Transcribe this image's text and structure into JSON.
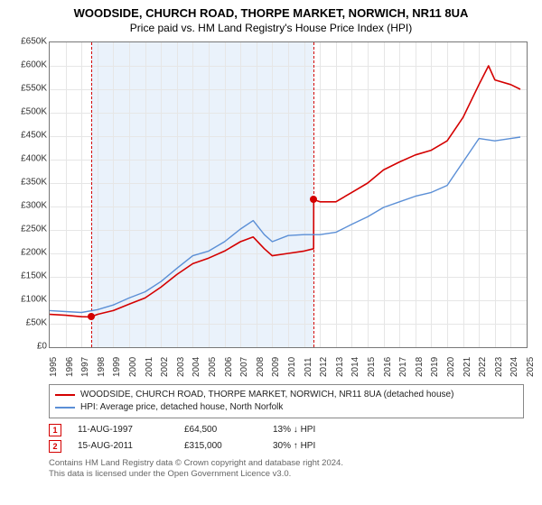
{
  "header": {
    "title": "WOODSIDE, CHURCH ROAD, THORPE MARKET, NORWICH, NR11 8UA",
    "subtitle": "Price paid vs. HM Land Registry's House Price Index (HPI)"
  },
  "chart": {
    "type": "line",
    "x": {
      "min": 1995,
      "max": 2025,
      "tick_step": 1
    },
    "y": {
      "min": 0,
      "max": 650000,
      "tick_step": 50000,
      "prefix": "£",
      "ksuffix": "K"
    },
    "grid_color": "#e6e6e6",
    "border_color": "#777777",
    "background_color": "#ffffff",
    "band": {
      "start": 1997.6,
      "end": 2011.6,
      "color": "#eaf2fb"
    },
    "series": [
      {
        "id": "prop",
        "label": "WOODSIDE, CHURCH ROAD, THORPE MARKET, NORWICH, NR11 8UA (detached house)",
        "color": "#d40000",
        "line_width": 1.6,
        "data": [
          [
            1995,
            70000
          ],
          [
            1996,
            68000
          ],
          [
            1997,
            65000
          ],
          [
            1997.6,
            64500
          ],
          [
            1998,
            70000
          ],
          [
            1999,
            78000
          ],
          [
            2000,
            92000
          ],
          [
            2001,
            105000
          ],
          [
            2002,
            128000
          ],
          [
            2003,
            155000
          ],
          [
            2004,
            178000
          ],
          [
            2005,
            190000
          ],
          [
            2006,
            205000
          ],
          [
            2007,
            225000
          ],
          [
            2007.8,
            235000
          ],
          [
            2008.5,
            210000
          ],
          [
            2009,
            195000
          ],
          [
            2010,
            200000
          ],
          [
            2011,
            205000
          ],
          [
            2011.6,
            210000
          ],
          [
            2011.61,
            315000
          ],
          [
            2012,
            310000
          ],
          [
            2013,
            310000
          ],
          [
            2014,
            330000
          ],
          [
            2015,
            350000
          ],
          [
            2016,
            378000
          ],
          [
            2017,
            395000
          ],
          [
            2018,
            410000
          ],
          [
            2019,
            420000
          ],
          [
            2020,
            440000
          ],
          [
            2021,
            490000
          ],
          [
            2022,
            560000
          ],
          [
            2022.6,
            600000
          ],
          [
            2023,
            570000
          ],
          [
            2024,
            560000
          ],
          [
            2024.6,
            550000
          ]
        ]
      },
      {
        "id": "hpi",
        "label": "HPI: Average price, detached house, North Norfolk",
        "color": "#5b8fd6",
        "line_width": 1.4,
        "data": [
          [
            1995,
            78000
          ],
          [
            1996,
            76000
          ],
          [
            1997,
            74000
          ],
          [
            1998,
            80000
          ],
          [
            1999,
            90000
          ],
          [
            2000,
            105000
          ],
          [
            2001,
            118000
          ],
          [
            2002,
            140000
          ],
          [
            2003,
            168000
          ],
          [
            2004,
            195000
          ],
          [
            2005,
            205000
          ],
          [
            2006,
            225000
          ],
          [
            2007,
            252000
          ],
          [
            2007.8,
            270000
          ],
          [
            2008.5,
            240000
          ],
          [
            2009,
            225000
          ],
          [
            2010,
            238000
          ],
          [
            2011,
            240000
          ],
          [
            2012,
            240000
          ],
          [
            2013,
            245000
          ],
          [
            2014,
            262000
          ],
          [
            2015,
            278000
          ],
          [
            2016,
            298000
          ],
          [
            2017,
            310000
          ],
          [
            2018,
            322000
          ],
          [
            2019,
            330000
          ],
          [
            2020,
            345000
          ],
          [
            2021,
            395000
          ],
          [
            2022,
            445000
          ],
          [
            2023,
            440000
          ],
          [
            2024,
            445000
          ],
          [
            2024.6,
            448000
          ]
        ]
      }
    ],
    "events": [
      {
        "n": "1",
        "x": 1997.6,
        "price_val": 64500,
        "date": "11-AUG-1997",
        "price": "£64,500",
        "pct": "13% ↓ HPI",
        "color": "#d40000"
      },
      {
        "n": "2",
        "x": 2011.6,
        "price_val": 315000,
        "date": "15-AUG-2011",
        "price": "£315,000",
        "pct": "30% ↑ HPI",
        "color": "#d40000"
      }
    ]
  },
  "legend": {
    "series": [
      {
        "color": "#d40000",
        "label_path": "chart.series.0.label"
      },
      {
        "color": "#5b8fd6",
        "label_path": "chart.series.1.label"
      }
    ]
  },
  "footnote": {
    "line1": "Contains HM Land Registry data © Crown copyright and database right 2024.",
    "line2": "This data is licensed under the Open Government Licence v3.0."
  }
}
